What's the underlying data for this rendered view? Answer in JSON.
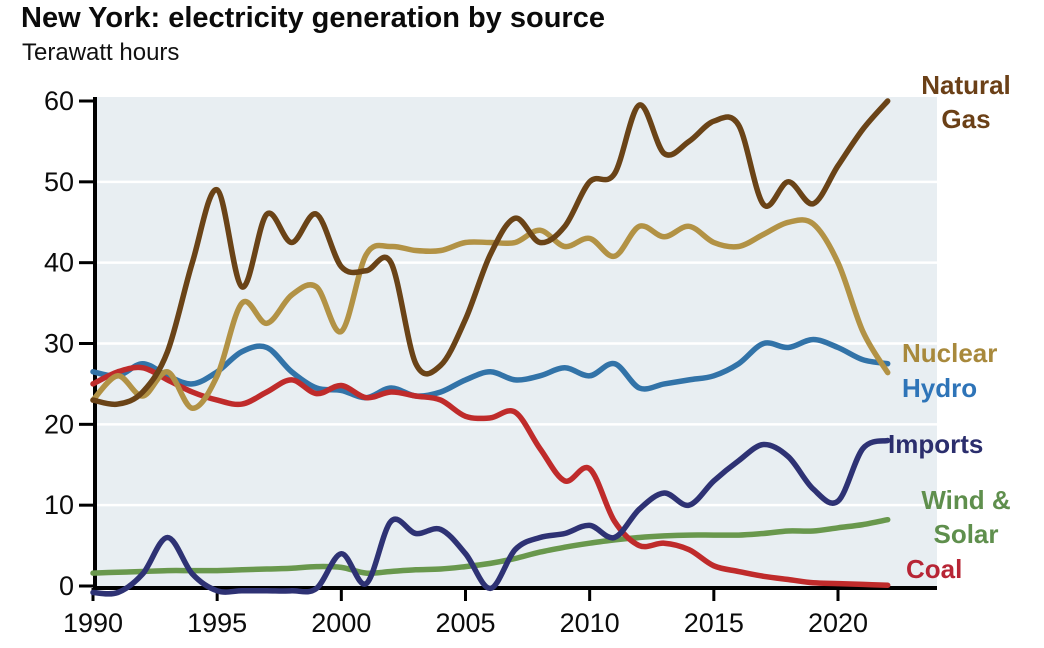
{
  "header": {
    "title": "New York: electricity generation by source",
    "subtitle": "Terawatt hours"
  },
  "chart_data": {
    "type": "line",
    "title": "New York: electricity generation by source",
    "ylabel": "Terawatt hours",
    "xlabel": "",
    "xlim": [
      1990,
      2022
    ],
    "ylim": [
      0,
      60
    ],
    "xticks": [
      1990,
      1995,
      2000,
      2005,
      2010,
      2015,
      2020
    ],
    "yticks": [
      0,
      10,
      20,
      30,
      40,
      50,
      60
    ],
    "grid": true,
    "grid_color": "#ffffff",
    "plot_bg": "#e8eef2",
    "axis_color": "#000000",
    "legend_position": "right-annotations",
    "x": [
      1990,
      1991,
      1992,
      1993,
      1994,
      1995,
      1996,
      1997,
      1998,
      1999,
      2000,
      2001,
      2002,
      2003,
      2004,
      2005,
      2006,
      2007,
      2008,
      2009,
      2010,
      2011,
      2012,
      2013,
      2014,
      2015,
      2016,
      2017,
      2018,
      2019,
      2020,
      2021,
      2022
    ],
    "series": [
      {
        "name": "Natural Gas",
        "color": "#6a4317",
        "values": [
          23,
          22.5,
          24,
          29,
          40,
          49,
          37,
          46,
          42.5,
          46,
          39.5,
          39,
          40,
          27.5,
          27.3,
          33,
          41,
          45.5,
          42.5,
          44.5,
          50,
          51,
          59.5,
          53.5,
          55,
          57.5,
          57,
          47.2,
          50,
          47.3,
          52,
          56.5,
          60
        ]
      },
      {
        "name": "Nuclear",
        "color": "#b29245",
        "values": [
          23,
          26,
          23.5,
          26.5,
          22,
          26,
          35,
          32.5,
          36,
          37,
          31.5,
          41,
          42,
          41.5,
          41.5,
          42.5,
          42.5,
          42.5,
          44,
          42,
          43,
          40.8,
          44.5,
          43.2,
          44.5,
          42.5,
          42,
          43.5,
          45,
          44.8,
          40,
          31.5,
          26.4
        ]
      },
      {
        "name": "Hydro",
        "color": "#3273a8",
        "values": [
          26.5,
          26,
          27.5,
          26,
          25,
          26.5,
          29,
          29.5,
          26.5,
          24.5,
          24.2,
          23.3,
          24.5,
          23.5,
          24,
          25.5,
          26.5,
          25.5,
          26,
          27,
          26,
          27.5,
          24.5,
          25,
          25.5,
          26,
          27.5,
          30,
          29.5,
          30.5,
          29.5,
          28,
          27.5
        ]
      },
      {
        "name": "Imports",
        "color": "#2e3274",
        "values": [
          -0.8,
          -0.8,
          1.5,
          6,
          1.5,
          -0.6,
          -0.6,
          -0.6,
          -0.6,
          -0.3,
          4,
          0.3,
          8,
          6.5,
          7,
          4,
          -0.3,
          4.5,
          6,
          6.5,
          7.5,
          6,
          9.5,
          11.5,
          10,
          13,
          15.5,
          17.5,
          16,
          12,
          10.5,
          17,
          18
        ]
      },
      {
        "name": "Wind & Solar",
        "color": "#69984d",
        "values": [
          1.6,
          1.7,
          1.8,
          1.9,
          1.9,
          1.9,
          2,
          2.1,
          2.2,
          2.4,
          2.3,
          1.6,
          1.8,
          2,
          2.1,
          2.4,
          2.8,
          3.4,
          4.2,
          4.8,
          5.3,
          5.7,
          6,
          6.2,
          6.3,
          6.3,
          6.3,
          6.5,
          6.8,
          6.8,
          7.2,
          7.6,
          8.2
        ]
      },
      {
        "name": "Coal",
        "color": "#bf2b2b",
        "values": [
          25,
          26.5,
          27,
          25.5,
          24,
          23,
          22.5,
          24,
          25.5,
          23.8,
          24.8,
          23.3,
          24,
          23.5,
          23,
          21,
          20.8,
          21.5,
          17,
          13,
          14.5,
          8,
          5,
          5.3,
          4.5,
          2.5,
          1.8,
          1.2,
          0.8,
          0.4,
          0.3,
          0.2,
          0.1
        ]
      }
    ],
    "draw_order": [
      "Wind & Solar",
      "Hydro",
      "Coal",
      "Nuclear",
      "Imports",
      "Natural Gas"
    ]
  },
  "annotations": {
    "natural_gas": {
      "line1": "Natural",
      "line2": "Gas",
      "color": "#6b4017"
    },
    "nuclear": {
      "text": "Nuclear",
      "color": "#a8893c"
    },
    "hydro": {
      "text": "Hydro",
      "color": "#2e74b8"
    },
    "imports": {
      "text": "Imports",
      "color": "#2b2e6d"
    },
    "wind_solar": {
      "line1": "Wind &",
      "line2": "Solar",
      "color": "#5f8f4d"
    },
    "coal": {
      "text": "Coal",
      "color": "#b72535"
    }
  }
}
